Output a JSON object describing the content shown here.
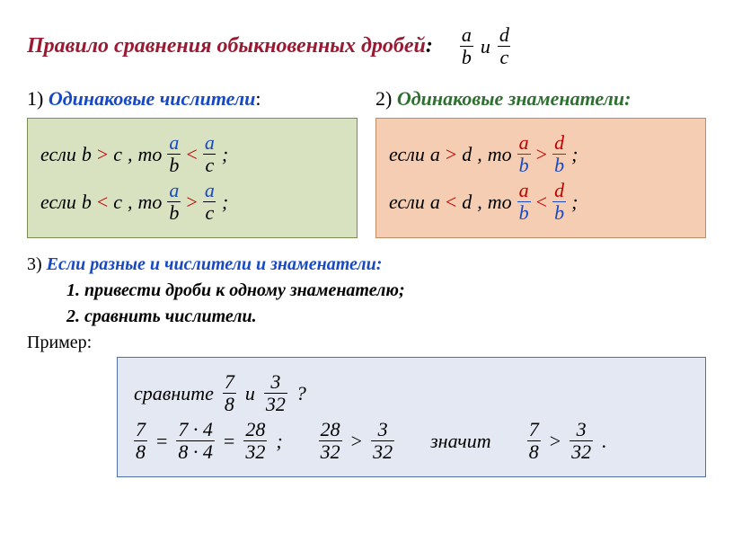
{
  "title": {
    "text": "Правило сравнения обыкновенных дробей",
    "color": "#9a1a33",
    "colon": ":"
  },
  "header_frac": {
    "a": "a",
    "b": "b",
    "u": "и",
    "d": "d",
    "c": "c"
  },
  "sec1": {
    "num": "1)",
    "label": "Одинаковые числители",
    "colon": ":",
    "label_color": "#1849c4",
    "box_bg": "#d8e2c1",
    "line1": {
      "if": "если",
      "l": "b",
      "cmp": ">",
      "r": "c",
      "comma": ",",
      "then": "то",
      "f1n": "a",
      "f1d": "b",
      "mid": "<",
      "f2n": "a",
      "f2d": "c",
      "end": ";",
      "cmp_color": "#c00000",
      "num_color": "#1849c4"
    },
    "line2": {
      "if": "если",
      "l": "b",
      "cmp": "<",
      "r": "c",
      "comma": ",",
      "then": "то",
      "f1n": "a",
      "f1d": "b",
      "mid": ">",
      "f2n": "a",
      "f2d": "c",
      "end": ";",
      "cmp_color": "#c00000",
      "num_color": "#1849c4"
    }
  },
  "sec2": {
    "num": "2)",
    "label": "Одинаковые знаменатели:",
    "label_color": "#2e7030",
    "box_bg": "#f4cdb2",
    "line1": {
      "if": "если",
      "l": "a",
      "cmp": ">",
      "r": "d",
      "comma": ",",
      "then": "то",
      "f1n": "a",
      "f1d": "b",
      "mid": ">",
      "f2n": "d",
      "f2d": "b",
      "end": ";",
      "cmp_color": "#c00000",
      "num_color": "#c00000",
      "den_color": "#1849c4"
    },
    "line2": {
      "if": "если",
      "l": "a",
      "cmp": "<",
      "r": "d",
      "comma": ",",
      "then": "то",
      "f1n": "a",
      "f1d": "b",
      "mid": "<",
      "f2n": "d",
      "f2d": "b",
      "end": ";",
      "cmp_color": "#c00000",
      "num_color": "#c00000",
      "den_color": "#1849c4"
    }
  },
  "sec3": {
    "num": "3)",
    "label": "Если разные и числители и знаменатели:",
    "label_color": "#1849c4",
    "step1_num": "1.",
    "step1": "привести дроби к одному знаменателю;",
    "step2_num": "2.",
    "step2": "сравнить числители."
  },
  "example": {
    "label": "Пример:",
    "row1": {
      "word": "сравните",
      "f1n": "7",
      "f1d": "8",
      "u": "и",
      "f2n": "3",
      "f2d": "32",
      "q": "?"
    },
    "row2": {
      "a_n": "7",
      "a_d": "8",
      "eq1": "=",
      "b_n": "7 · 4",
      "b_d": "8 · 4",
      "eq2": "=",
      "c_n": "28",
      "c_d": "32",
      "semi": ";",
      "d_n": "28",
      "d_d": "32",
      "cmp1": ">",
      "e_n": "3",
      "e_d": "32",
      "word": "значит",
      "f_n": "7",
      "f_d": "8",
      "cmp2": ">",
      "g_n": "3",
      "g_d": "32",
      "dot": "."
    }
  }
}
